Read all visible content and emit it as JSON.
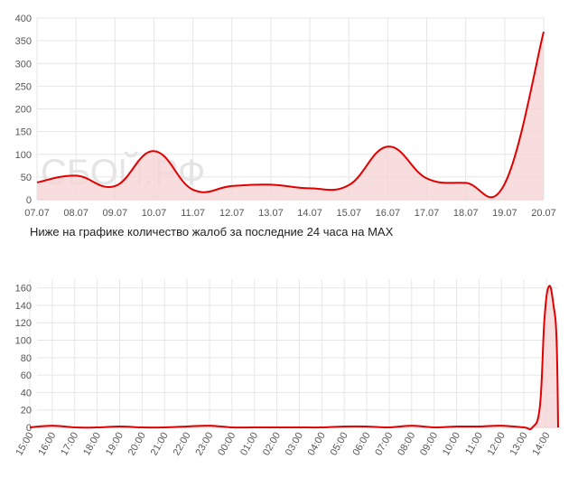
{
  "watermark": "СБОЙ.РФ",
  "caption": "Ниже на графике количество жалоб за последние 24 часа на MAX",
  "colors": {
    "line": "#e00000",
    "fill": "#f5d5d5",
    "grid": "#e6e6e6",
    "axis": "#cfcfcf",
    "text": "#555555"
  },
  "chart_data": [
    {
      "type": "area",
      "categories": [
        "07.07",
        "08.07",
        "09.07",
        "10.07",
        "11.07",
        "12.07",
        "13.07",
        "14.07",
        "15.07",
        "16.07",
        "17.07",
        "18.07",
        "19.07",
        "20.07"
      ],
      "values": [
        38,
        53,
        30,
        107,
        22,
        30,
        33,
        25,
        32,
        117,
        47,
        37,
        35,
        370
      ],
      "yticks": [
        0,
        50,
        100,
        150,
        200,
        250,
        300,
        350,
        400
      ],
      "ylim": [
        0,
        400
      ],
      "grid": true,
      "legend": "none"
    },
    {
      "type": "area",
      "categories": [
        "15:00",
        "16:00",
        "17:00",
        "18:00",
        "19:00",
        "20:00",
        "21:00",
        "22:00",
        "23:00",
        "00:00",
        "01:00",
        "02:00",
        "03:00",
        "04:00",
        "05:00",
        "06:00",
        "07:00",
        "08:00",
        "09:00",
        "10:00",
        "11:00",
        "12:00",
        "13:00",
        "14:00"
      ],
      "values": [
        0,
        2,
        0,
        0,
        1,
        0,
        0,
        1,
        2,
        0,
        0,
        0,
        0,
        0,
        1,
        1,
        0,
        2,
        0,
        1,
        1,
        2,
        0,
        162
      ],
      "extra_points": [
        {
          "x": 13.5,
          "y": 0
        },
        {
          "x": 13.75,
          "y": 25
        },
        {
          "x": 13.9,
          "y": 125
        },
        {
          "x": 14.2,
          "y": 140
        },
        {
          "x": 14.3,
          "y": 100
        },
        {
          "x": 14.45,
          "y": 0
        }
      ],
      "yticks": [
        0,
        20,
        40,
        60,
        80,
        100,
        120,
        140,
        160
      ],
      "ylim": [
        0,
        170
      ],
      "grid": true,
      "legend": "none"
    }
  ]
}
